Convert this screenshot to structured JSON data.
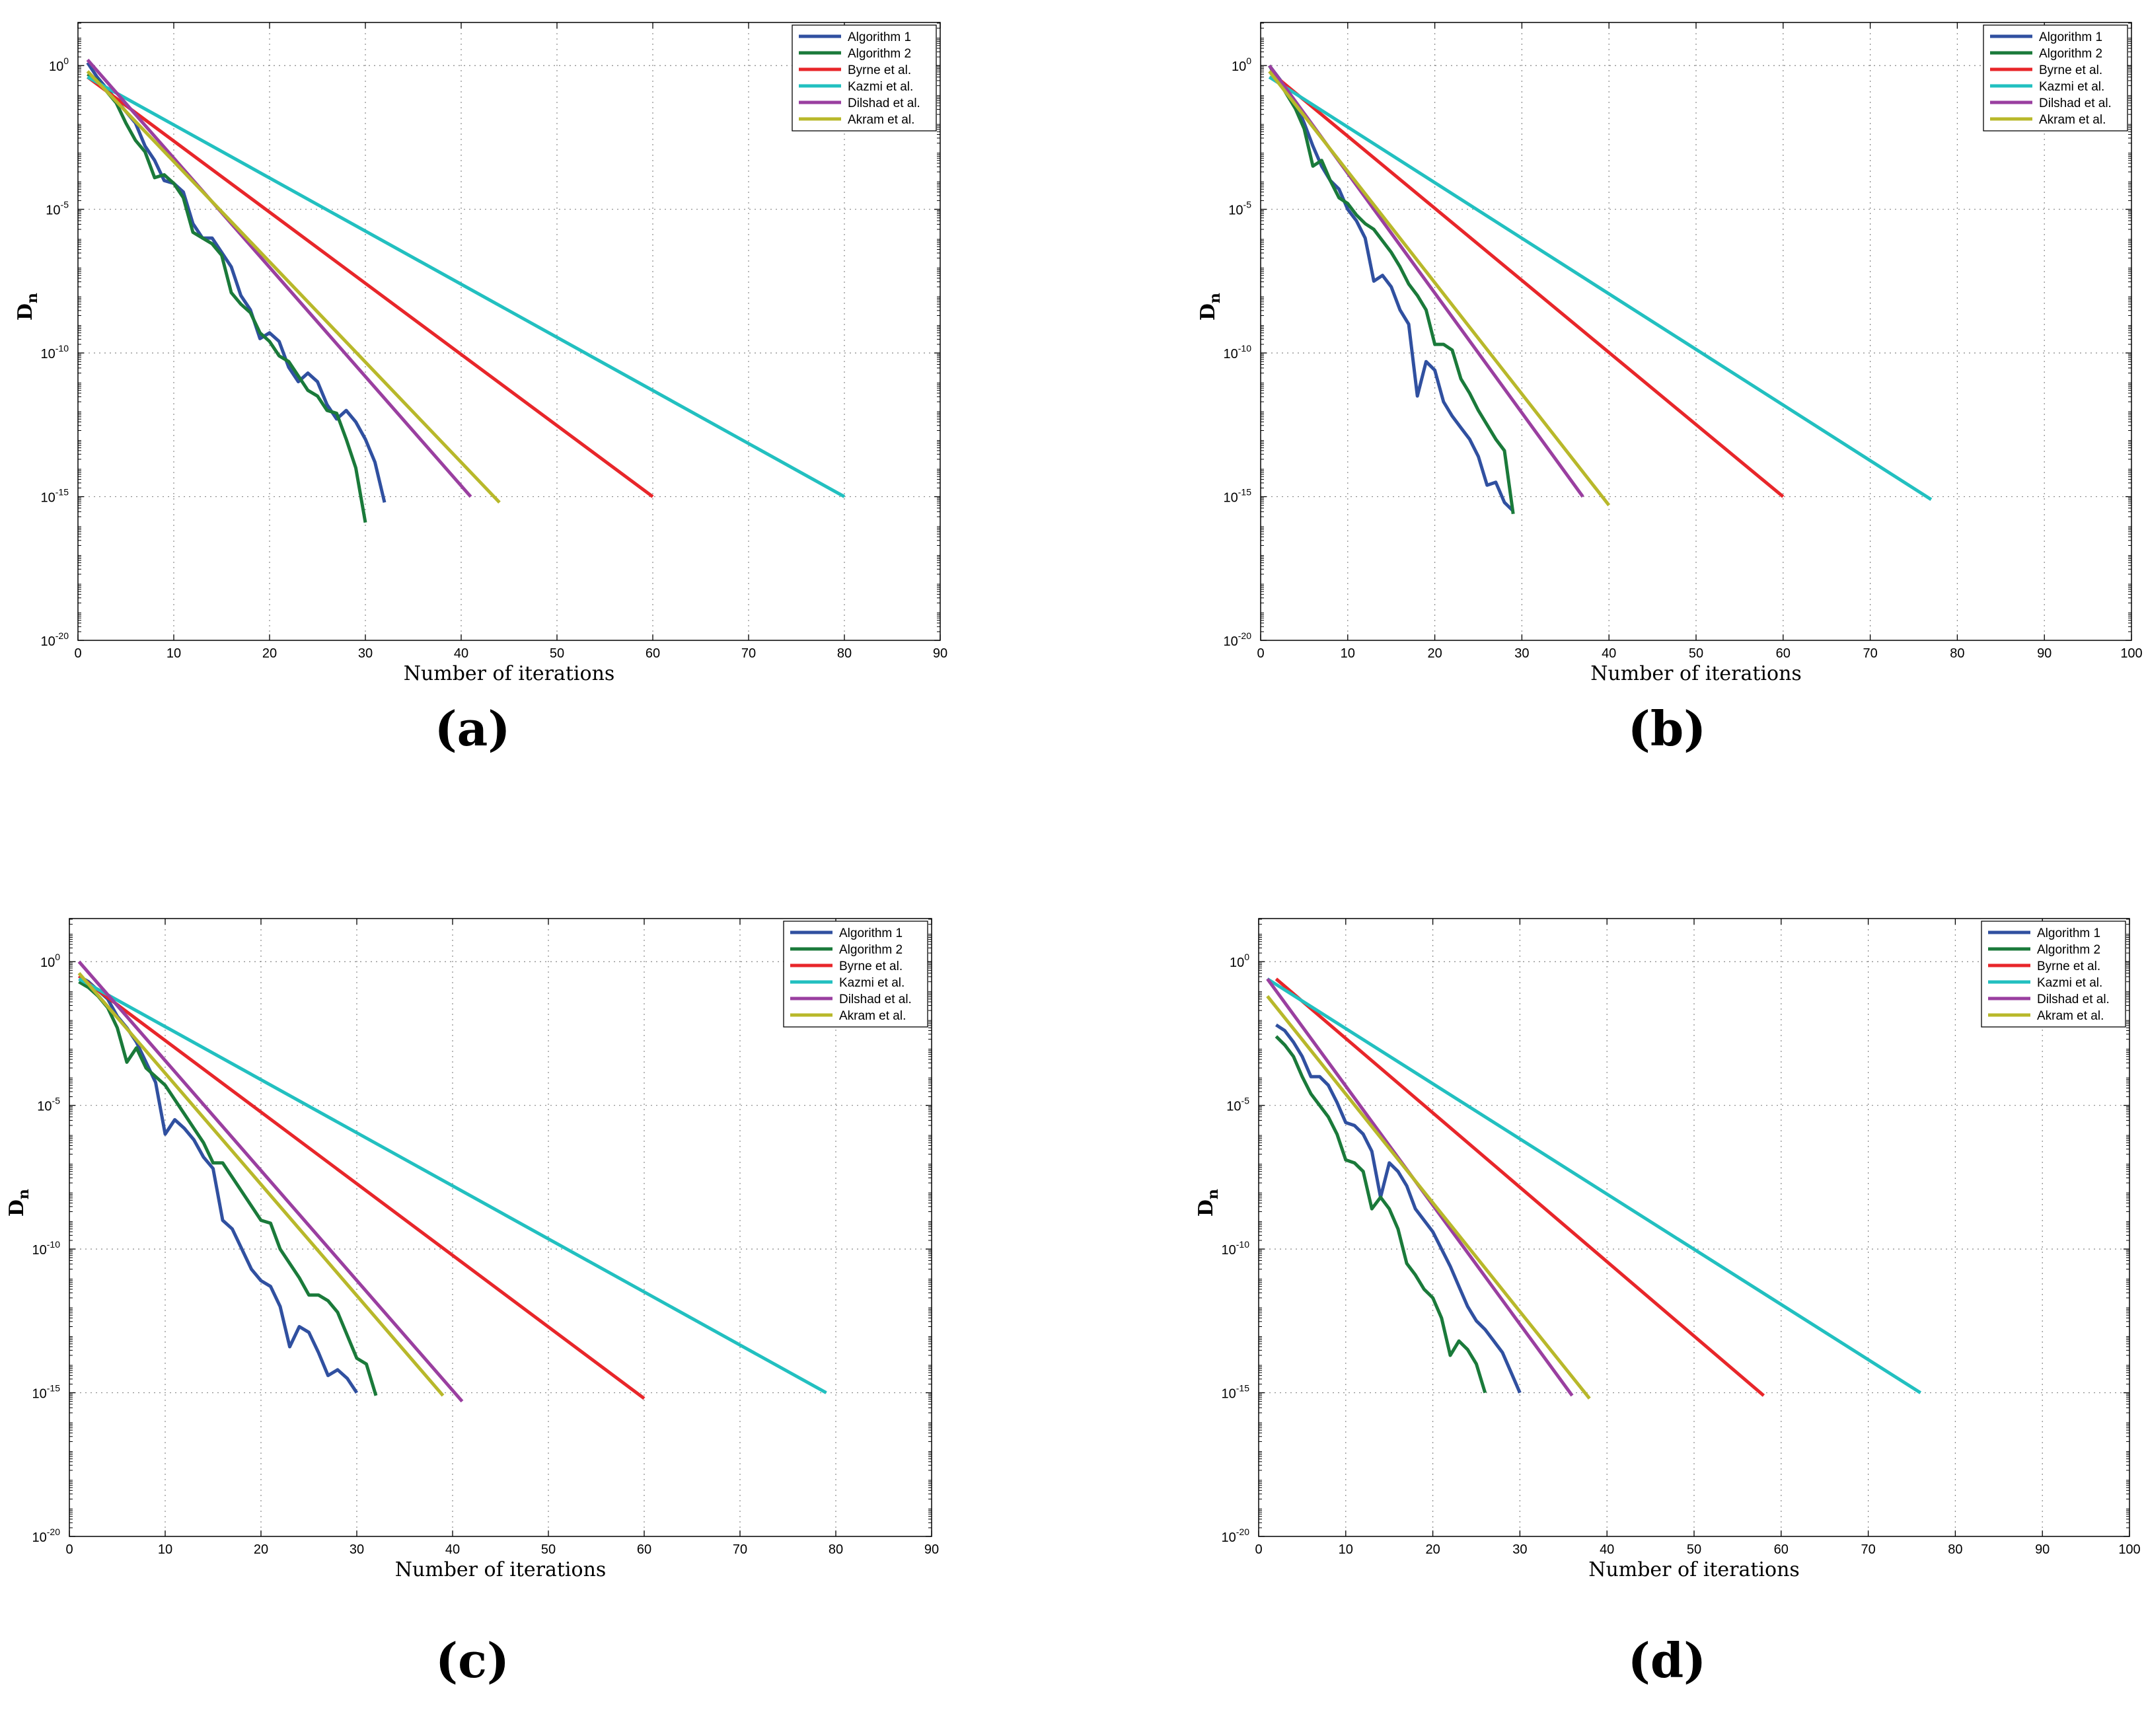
{
  "figure": {
    "captions": [
      "(a)",
      "(b)",
      "(c)",
      "(d)"
    ]
  },
  "chart_data": [
    {
      "type": "line",
      "panel": "a",
      "xlabel": "Number of iterations",
      "ylabel": "D",
      "ylabel_sub": "n",
      "yscale": "log",
      "xlim": [
        0,
        90
      ],
      "ylim_exp": [
        -20,
        1.5
      ],
      "xticks": [
        0,
        10,
        20,
        30,
        40,
        50,
        60,
        70,
        80,
        90
      ],
      "yticks_exp": [
        0,
        -5,
        -10,
        -15,
        -20
      ],
      "grid": true,
      "legend_position": "top-right",
      "series": [
        {
          "name": "Algorithm 1",
          "color": "#3050a0",
          "x": [
            1,
            2,
            3,
            4,
            5,
            6,
            7,
            8,
            9,
            10,
            11,
            12,
            13,
            14,
            15,
            16,
            17,
            18,
            19,
            20,
            21,
            22,
            23,
            24,
            25,
            26,
            27,
            28,
            29,
            30,
            31,
            32
          ],
          "log10y": [
            0.1,
            -0.4,
            -0.8,
            -1.2,
            -1.6,
            -2.0,
            -2.8,
            -3.3,
            -4.0,
            -4.1,
            -4.4,
            -5.5,
            -6.0,
            -6.0,
            -6.5,
            -7.0,
            -8.0,
            -8.5,
            -9.5,
            -9.3,
            -9.6,
            -10.5,
            -11.0,
            -10.7,
            -11.0,
            -11.8,
            -12.3,
            -12.0,
            -12.4,
            -13.0,
            -13.8,
            -15.2
          ]
        },
        {
          "name": "Algorithm 2",
          "color": "#1a7a3a",
          "x": [
            1,
            2,
            3,
            4,
            5,
            6,
            7,
            8,
            9,
            10,
            11,
            12,
            13,
            14,
            15,
            16,
            17,
            18,
            19,
            20,
            21,
            22,
            23,
            24,
            25,
            26,
            27,
            28,
            29,
            30
          ],
          "log10y": [
            -0.3,
            -0.5,
            -0.9,
            -1.3,
            -2.0,
            -2.6,
            -3.0,
            -3.9,
            -3.8,
            -4.1,
            -4.6,
            -5.8,
            -6.0,
            -6.2,
            -6.6,
            -7.9,
            -8.3,
            -8.6,
            -9.3,
            -9.6,
            -10.1,
            -10.3,
            -10.8,
            -11.3,
            -11.5,
            -12.0,
            -12.1,
            -13.0,
            -14.0,
            -15.9
          ]
        },
        {
          "name": "Byrne et al.",
          "color": "#e8262a",
          "x": [
            1,
            60
          ],
          "log10y": [
            -0.4,
            -15.0
          ]
        },
        {
          "name": "Kazmi et al.",
          "color": "#22c0c0",
          "x": [
            1,
            80
          ],
          "log10y": [
            -0.4,
            -15.0
          ]
        },
        {
          "name": "Dilshad et al.",
          "color": "#9a3fa0",
          "x": [
            1,
            41
          ],
          "log10y": [
            0.2,
            -15.0
          ]
        },
        {
          "name": "Akram et al.",
          "color": "#b8b82a",
          "x": [
            1,
            44
          ],
          "log10y": [
            -0.2,
            -15.2
          ]
        }
      ]
    },
    {
      "type": "line",
      "panel": "b",
      "xlabel": "Number of iterations",
      "ylabel": "D",
      "ylabel_sub": "n",
      "yscale": "log",
      "xlim": [
        0,
        100
      ],
      "ylim_exp": [
        -20,
        1.5
      ],
      "xticks": [
        0,
        10,
        20,
        30,
        40,
        50,
        60,
        70,
        80,
        90,
        100
      ],
      "yticks_exp": [
        0,
        -5,
        -10,
        -15,
        -20
      ],
      "grid": true,
      "legend_position": "top-right",
      "series": [
        {
          "name": "Algorithm 1",
          "color": "#3050a0",
          "x": [
            1,
            2,
            3,
            4,
            5,
            6,
            7,
            8,
            9,
            10,
            11,
            12,
            13,
            14,
            15,
            16,
            17,
            18,
            19,
            20,
            21,
            22,
            23,
            24,
            25,
            26,
            27,
            28,
            29
          ],
          "log10y": [
            0.0,
            -0.4,
            -0.8,
            -1.3,
            -2.0,
            -2.8,
            -3.5,
            -4.0,
            -4.3,
            -5.0,
            -5.4,
            -6.0,
            -7.5,
            -7.3,
            -7.7,
            -8.5,
            -9.0,
            -11.5,
            -10.3,
            -10.6,
            -11.7,
            -12.2,
            -12.6,
            -13.0,
            -13.6,
            -14.6,
            -14.5,
            -15.2,
            -15.5
          ]
        },
        {
          "name": "Algorithm 2",
          "color": "#1a7a3a",
          "x": [
            1,
            2,
            3,
            4,
            5,
            6,
            7,
            8,
            9,
            10,
            11,
            12,
            13,
            14,
            15,
            16,
            17,
            18,
            19,
            20,
            21,
            22,
            23,
            24,
            25,
            26,
            27,
            28,
            29
          ],
          "log10y": [
            0.0,
            -0.5,
            -1.0,
            -1.5,
            -2.2,
            -3.5,
            -3.3,
            -4.0,
            -4.6,
            -4.8,
            -5.2,
            -5.5,
            -5.7,
            -6.1,
            -6.5,
            -7.0,
            -7.6,
            -8.0,
            -8.5,
            -9.7,
            -9.7,
            -9.9,
            -10.9,
            -11.4,
            -12.0,
            -12.5,
            -13.0,
            -13.4,
            -15.6
          ]
        },
        {
          "name": "Byrne et al.",
          "color": "#e8262a",
          "x": [
            1,
            60
          ],
          "log10y": [
            -0.2,
            -15.0
          ]
        },
        {
          "name": "Kazmi et al.",
          "color": "#22c0c0",
          "x": [
            1,
            77
          ],
          "log10y": [
            -0.4,
            -15.1
          ]
        },
        {
          "name": "Dilshad et al.",
          "color": "#9a3fa0",
          "x": [
            1,
            37
          ],
          "log10y": [
            0.0,
            -15.0
          ]
        },
        {
          "name": "Akram et al.",
          "color": "#b8b82a",
          "x": [
            1,
            40
          ],
          "log10y": [
            -0.2,
            -15.3
          ]
        }
      ]
    },
    {
      "type": "line",
      "panel": "c",
      "xlabel": "Number of iterations",
      "ylabel": "D",
      "ylabel_sub": "n",
      "yscale": "log",
      "xlim": [
        0,
        90
      ],
      "ylim_exp": [
        -20,
        1.5
      ],
      "xticks": [
        0,
        10,
        20,
        30,
        40,
        50,
        60,
        70,
        80,
        90
      ],
      "yticks_exp": [
        0,
        -5,
        -10,
        -15,
        -20
      ],
      "grid": true,
      "legend_position": "top-right",
      "series": [
        {
          "name": "Algorithm 1",
          "color": "#3050a0",
          "x": [
            1,
            2,
            3,
            4,
            5,
            6,
            7,
            8,
            9,
            10,
            11,
            12,
            13,
            14,
            15,
            16,
            17,
            18,
            19,
            20,
            21,
            22,
            23,
            24,
            25,
            26,
            27,
            28,
            29,
            30
          ],
          "log10y": [
            -0.5,
            -0.7,
            -1.0,
            -1.3,
            -1.9,
            -2.3,
            -2.8,
            -3.5,
            -4.2,
            -6.0,
            -5.5,
            -5.8,
            -6.2,
            -6.8,
            -7.2,
            -9.0,
            -9.3,
            -10.0,
            -10.7,
            -11.1,
            -11.3,
            -12.0,
            -13.4,
            -12.7,
            -12.9,
            -13.6,
            -14.4,
            -14.2,
            -14.5,
            -15.0
          ]
        },
        {
          "name": "Algorithm 2",
          "color": "#1a7a3a",
          "x": [
            1,
            2,
            3,
            4,
            5,
            6,
            7,
            8,
            9,
            10,
            11,
            12,
            13,
            14,
            15,
            16,
            17,
            18,
            19,
            20,
            21,
            22,
            23,
            24,
            25,
            26,
            27,
            28,
            29,
            30,
            31,
            32
          ],
          "log10y": [
            -0.7,
            -0.9,
            -1.2,
            -1.6,
            -2.3,
            -3.5,
            -3.0,
            -3.7,
            -4.0,
            -4.3,
            -4.8,
            -5.3,
            -5.8,
            -6.3,
            -7.0,
            -7.0,
            -7.5,
            -8.0,
            -8.5,
            -9.0,
            -9.1,
            -10.0,
            -10.5,
            -11.0,
            -11.6,
            -11.6,
            -11.8,
            -12.2,
            -13.0,
            -13.8,
            -14.0,
            -15.1
          ]
        },
        {
          "name": "Byrne et al.",
          "color": "#e8262a",
          "x": [
            1,
            60
          ],
          "log10y": [
            -0.5,
            -15.2
          ]
        },
        {
          "name": "Kazmi et al.",
          "color": "#22c0c0",
          "x": [
            1,
            79
          ],
          "log10y": [
            -0.6,
            -15.0
          ]
        },
        {
          "name": "Dilshad et al.",
          "color": "#9a3fa0",
          "x": [
            1,
            41
          ],
          "log10y": [
            0.0,
            -15.3
          ]
        },
        {
          "name": "Akram et al.",
          "color": "#b8b82a",
          "x": [
            1,
            39
          ],
          "log10y": [
            -0.4,
            -15.1
          ]
        }
      ]
    },
    {
      "type": "line",
      "panel": "d",
      "xlabel": "Number of iterations",
      "ylabel": "D",
      "ylabel_sub": "n",
      "yscale": "log",
      "xlim": [
        0,
        100
      ],
      "ylim_exp": [
        -20,
        1.5
      ],
      "xticks": [
        0,
        10,
        20,
        30,
        40,
        50,
        60,
        70,
        80,
        90,
        100
      ],
      "yticks_exp": [
        0,
        -5,
        -10,
        -15,
        -20
      ],
      "grid": true,
      "legend_position": "top-right",
      "series": [
        {
          "name": "Algorithm 1",
          "color": "#3050a0",
          "x": [
            2,
            3,
            4,
            5,
            6,
            7,
            8,
            9,
            10,
            11,
            12,
            13,
            14,
            15,
            16,
            17,
            18,
            19,
            20,
            21,
            22,
            23,
            24,
            25,
            26,
            27,
            28,
            29,
            30
          ],
          "log10y": [
            -2.2,
            -2.4,
            -2.8,
            -3.3,
            -4.0,
            -4.0,
            -4.3,
            -4.9,
            -5.6,
            -5.7,
            -6.0,
            -6.6,
            -8.2,
            -7.0,
            -7.3,
            -7.8,
            -8.6,
            -9.0,
            -9.4,
            -10.0,
            -10.6,
            -11.3,
            -12.0,
            -12.5,
            -12.8,
            -13.2,
            -13.6,
            -14.3,
            -15.0
          ]
        },
        {
          "name": "Algorithm 2",
          "color": "#1a7a3a",
          "x": [
            2,
            3,
            4,
            5,
            6,
            7,
            8,
            9,
            10,
            11,
            12,
            13,
            14,
            15,
            16,
            17,
            18,
            19,
            20,
            21,
            22,
            23,
            24,
            25,
            26
          ],
          "log10y": [
            -2.6,
            -2.9,
            -3.3,
            -4.0,
            -4.6,
            -5.0,
            -5.4,
            -6.0,
            -6.9,
            -7.0,
            -7.3,
            -8.6,
            -8.2,
            -8.6,
            -9.3,
            -10.5,
            -10.9,
            -11.4,
            -11.7,
            -12.4,
            -13.7,
            -13.2,
            -13.5,
            -14.0,
            -15.0
          ]
        },
        {
          "name": "Byrne et al.",
          "color": "#e8262a",
          "x": [
            2,
            58
          ],
          "log10y": [
            -0.6,
            -15.1
          ]
        },
        {
          "name": "Kazmi et al.",
          "color": "#22c0c0",
          "x": [
            1,
            76
          ],
          "log10y": [
            -0.6,
            -15.0
          ]
        },
        {
          "name": "Dilshad et al.",
          "color": "#9a3fa0",
          "x": [
            1,
            36
          ],
          "log10y": [
            -0.6,
            -15.1
          ]
        },
        {
          "name": "Akram et al.",
          "color": "#b8b82a",
          "x": [
            1,
            38
          ],
          "log10y": [
            -1.2,
            -15.2
          ]
        }
      ]
    }
  ]
}
